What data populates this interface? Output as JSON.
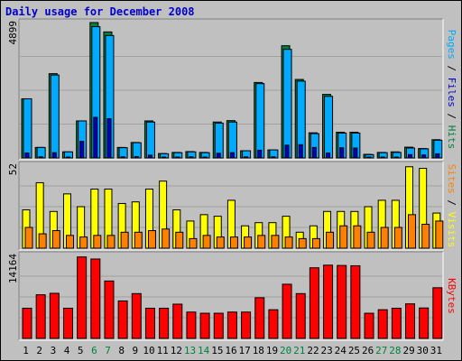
{
  "chart_data": [
    {
      "type": "bar",
      "title": "Daily usage for December 2008",
      "ylabel_parts": [
        {
          "text": "Pages",
          "color": "#00aaff"
        },
        {
          "text": " / ",
          "color": "#000000"
        },
        {
          "text": "Files",
          "color": "#0000cc"
        },
        {
          "text": " / ",
          "color": "#000000"
        },
        {
          "text": "Hits",
          "color": "#008040"
        }
      ],
      "ymax_label": "4899",
      "ylim": [
        0,
        4899
      ],
      "categories": [
        "1",
        "2",
        "3",
        "4",
        "5",
        "6",
        "7",
        "8",
        "9",
        "10",
        "11",
        "12",
        "13",
        "14",
        "15",
        "16",
        "17",
        "18",
        "19",
        "20",
        "21",
        "22",
        "23",
        "24",
        "25",
        "26",
        "27",
        "28",
        "29",
        "30",
        "31"
      ],
      "series": [
        {
          "name": "Hits",
          "color": "#008040",
          "values": [
            2140,
            380,
            3050,
            220,
            1340,
            4899,
            4560,
            380,
            560,
            1340,
            160,
            200,
            230,
            200,
            1300,
            1350,
            260,
            2730,
            290,
            4060,
            2840,
            910,
            2300,
            930,
            930,
            130,
            200,
            220,
            390,
            340,
            660
          ]
        },
        {
          "name": "Files",
          "color": "#0000cc",
          "values": [
            180,
            40,
            190,
            30,
            600,
            1470,
            1420,
            40,
            50,
            100,
            20,
            30,
            40,
            30,
            170,
            190,
            40,
            280,
            40,
            460,
            480,
            380,
            180,
            370,
            360,
            20,
            30,
            30,
            120,
            110,
            150
          ]
        },
        {
          "name": "Pages",
          "color": "#00aaff",
          "values": [
            2140,
            380,
            3000,
            220,
            1340,
            4750,
            4430,
            370,
            550,
            1300,
            150,
            190,
            220,
            190,
            1260,
            1300,
            260,
            2690,
            290,
            3930,
            2780,
            880,
            2230,
            900,
            900,
            120,
            190,
            200,
            360,
            330,
            640
          ]
        }
      ]
    },
    {
      "type": "bar",
      "ylabel_parts": [
        {
          "text": "Sites",
          "color": "#ff8000"
        },
        {
          "text": " / ",
          "color": "#000000"
        },
        {
          "text": "Visits",
          "color": "#ffff00"
        }
      ],
      "ymax_label": "52",
      "ylim": [
        0,
        52
      ],
      "categories": [
        "1",
        "2",
        "3",
        "4",
        "5",
        "6",
        "7",
        "8",
        "9",
        "10",
        "11",
        "12",
        "13",
        "14",
        "15",
        "16",
        "17",
        "18",
        "19",
        "20",
        "21",
        "22",
        "23",
        "24",
        "25",
        "26",
        "27",
        "28",
        "29",
        "30",
        "31"
      ],
      "series": [
        {
          "name": "Visits",
          "color": "#ffff00",
          "values": [
            24,
            41,
            23,
            34,
            26,
            37,
            37,
            28,
            29,
            37,
            42,
            24,
            17,
            21,
            20,
            30,
            14,
            16,
            16,
            20,
            10,
            14,
            23,
            23,
            23,
            26,
            30,
            30,
            51,
            50,
            22
          ]
        },
        {
          "name": "Sites",
          "color": "#ff8000",
          "values": [
            13,
            9,
            11,
            8,
            7,
            8,
            8,
            10,
            10,
            11,
            12,
            10,
            6,
            8,
            7,
            7,
            7,
            8,
            8,
            7,
            6,
            6,
            10,
            14,
            14,
            10,
            13,
            13,
            21,
            15,
            17
          ]
        }
      ]
    },
    {
      "type": "bar",
      "ylabel_parts": [
        {
          "text": "KBytes",
          "color": "#ff0000"
        }
      ],
      "ymax_label": "14164",
      "ylim": [
        0,
        14164
      ],
      "categories": [
        "1",
        "2",
        "3",
        "4",
        "5",
        "6",
        "7",
        "8",
        "9",
        "10",
        "11",
        "12",
        "13",
        "14",
        "15",
        "16",
        "17",
        "18",
        "19",
        "20",
        "21",
        "22",
        "23",
        "24",
        "25",
        "26",
        "27",
        "28",
        "29",
        "30",
        "31"
      ],
      "series": [
        {
          "name": "KBytes",
          "color": "#ff0000",
          "values": [
            5150,
            7450,
            7700,
            5150,
            13900,
            13550,
            9800,
            6400,
            7650,
            5150,
            5150,
            5850,
            4500,
            4300,
            4300,
            4500,
            4500,
            6950,
            4900,
            9250,
            7650,
            12050,
            12500,
            12450,
            12400,
            4300,
            4900,
            5150,
            5900,
            5200,
            8650
          ]
        }
      ]
    }
  ],
  "x_label_colors": {
    "weekday": "#000000",
    "weekend": "#008040",
    "weekend_days": [
      "6",
      "7",
      "13",
      "14",
      "20",
      "21",
      "27",
      "28"
    ]
  }
}
